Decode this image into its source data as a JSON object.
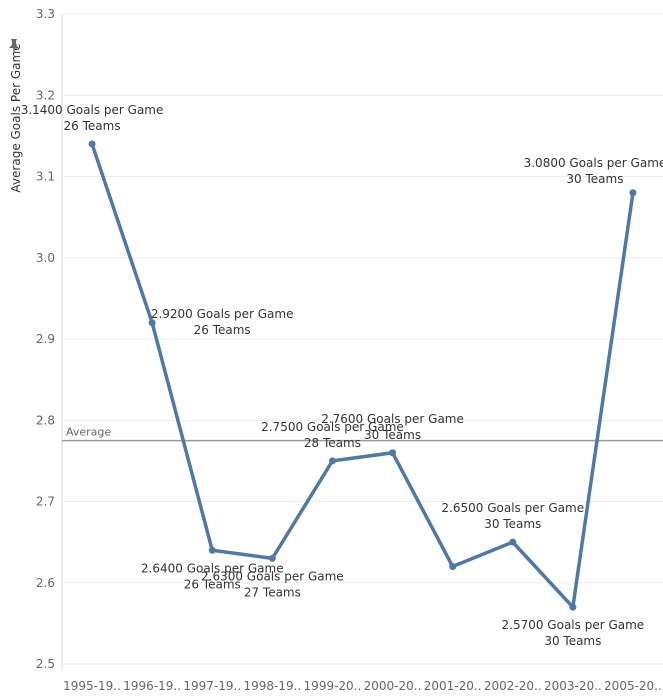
{
  "chart_data": {
    "type": "line",
    "title": "",
    "xlabel": "",
    "ylabel": "Average Goals Per Game",
    "ylim": [
      2.5,
      3.3
    ],
    "yticks": [
      "2.5",
      "2.6",
      "2.7",
      "2.8",
      "2.9",
      "3.0",
      "3.1",
      "3.2",
      "3.3"
    ],
    "categories": [
      "1995-19..",
      "1996-19..",
      "1997-19..",
      "1998-19..",
      "1999-20..",
      "2000-20..",
      "2001-20..",
      "2002-20..",
      "2003-20..",
      "2005-20.."
    ],
    "series": [
      {
        "values": [
          3.14,
          2.92,
          2.64,
          2.63,
          2.75,
          2.76,
          2.62,
          2.65,
          2.57,
          3.08
        ],
        "color": "#4e79a7"
      }
    ],
    "point_labels": [
      {
        "index": 0,
        "line1": "3.1400 Goals per Game",
        "line2": "26 Teams",
        "position": "above"
      },
      {
        "index": 1,
        "line1": "2.9200 Goals per Game",
        "line2": "26 Teams",
        "position": "right"
      },
      {
        "index": 2,
        "line1": "2.6400 Goals per Game",
        "line2": "26 Teams",
        "position": "below"
      },
      {
        "index": 3,
        "line1": "2.6300 Goals per Game",
        "line2": "27 Teams",
        "position": "below"
      },
      {
        "index": 4,
        "line1": "2.7500 Goals per Game",
        "line2": "28 Teams",
        "position": "above"
      },
      {
        "index": 5,
        "line1": "2.7600 Goals per Game",
        "line2": "30 Teams",
        "position": "above"
      },
      {
        "index": 7,
        "line1": "2.6500 Goals per Game",
        "line2": "30 Teams",
        "position": "above"
      },
      {
        "index": 8,
        "line1": "2.5700 Goals per Game",
        "line2": "30 Teams",
        "position": "below"
      },
      {
        "index": 9,
        "line1": "3.0800 Goals per Game",
        "line2": "30 Teams",
        "position": "above-left"
      }
    ],
    "reference_line": {
      "label": "Average",
      "value": 2.775,
      "color": "#999999"
    },
    "grid": true,
    "legend": "none"
  },
  "icons": {
    "axis_pin": "pin-icon"
  }
}
